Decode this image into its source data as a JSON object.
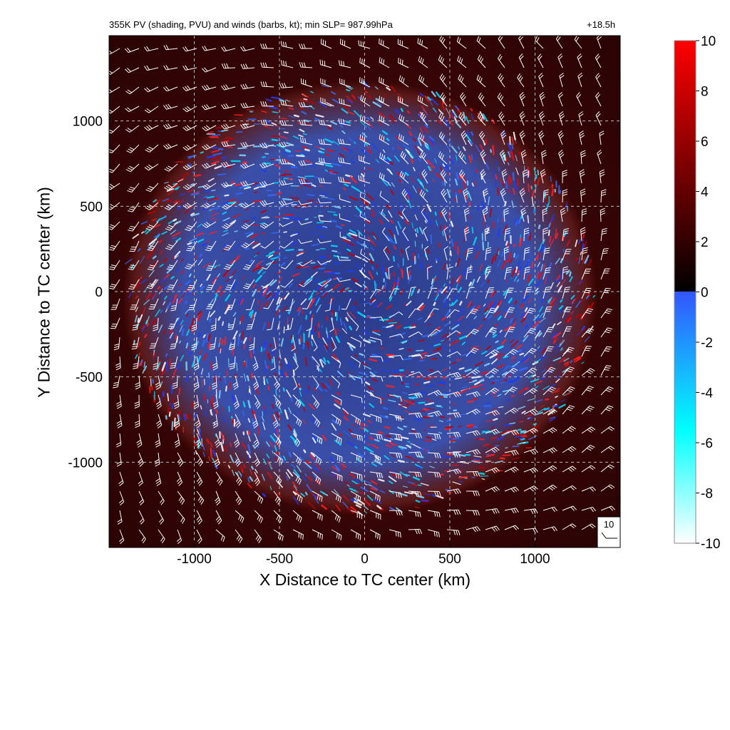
{
  "title_left": "355K PV (shading, PVU) and winds (barbs, kt); min SLP= 987.99hPa",
  "title_right": "+18.5h",
  "chart_data": {
    "type": "heatmap",
    "title": "355K PV (shading, PVU) and winds (barbs, kt); min SLP= 987.99hPa",
    "forecast_hour": "+18.5h",
    "xlabel": "X Distance to TC center (km)",
    "ylabel": "Y Distance to TC center (km)",
    "xlim": [
      -1500,
      1500
    ],
    "ylim": [
      -1500,
      1500
    ],
    "xticks": [
      -1000,
      -500,
      0,
      500,
      1000
    ],
    "yticks": [
      -1000,
      -500,
      0,
      500,
      1000
    ],
    "grid": true,
    "colorbar": {
      "ticks": [
        10,
        8,
        6,
        4,
        2,
        0,
        -2,
        -4,
        -6,
        -8,
        -10
      ],
      "range": [
        -10,
        10
      ],
      "colors": {
        "max": "#ff0000",
        "mid_positive": "#7a0000",
        "near_zero_positive": "#000000",
        "zero_negative": "#3355ff",
        "mid_negative": "#00ffff",
        "min": "#ffffff"
      }
    },
    "shading": {
      "background_pv": 2,
      "pattern": "spiral cyclonic PV field with alternating positive and negative anomalies within ~1200 km of center"
    },
    "wind_barbs": {
      "units": "kt",
      "reference_barb_label": "10",
      "barb_color": "#ffffff"
    }
  }
}
